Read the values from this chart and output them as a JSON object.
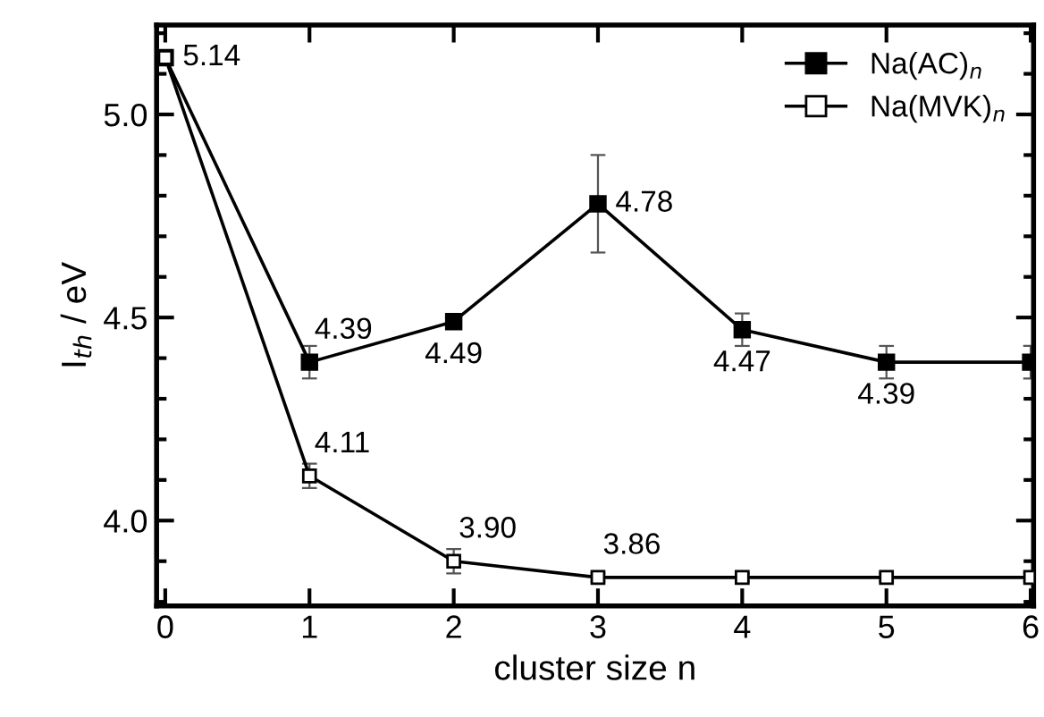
{
  "chart_data": {
    "type": "line",
    "xlabel": "cluster size n",
    "ylabel": "I$_{th}$ / eV",
    "x": [
      0,
      1,
      2,
      3,
      4,
      5,
      6
    ],
    "series": [
      {
        "name": "Na(AC)$_{n}$",
        "color": "#000000",
        "values": [
          5.14,
          4.39,
          4.49,
          4.78,
          4.47,
          4.39,
          4.39
        ],
        "errors": [
          null,
          0.04,
          null,
          0.12,
          0.04,
          0.04,
          0.04
        ],
        "value_labels": [
          "5.14",
          "4.39",
          "4.49",
          "4.78",
          "4.47",
          "4.39",
          null
        ]
      },
      {
        "name": "Na(MVK)$_{n}$",
        "color": "#000000",
        "values": [
          5.14,
          4.11,
          3.9,
          3.86,
          3.86,
          3.86,
          3.86
        ],
        "errors": [
          null,
          0.03,
          0.03,
          0.01,
          0.01,
          0.01,
          0.01
        ],
        "value_labels": [
          null,
          "4.11",
          "3.90",
          "3.86",
          null,
          null,
          null
        ]
      }
    ],
    "xlim": [
      -0.06,
      6.02
    ],
    "ylim": [
      3.79,
      5.22
    ],
    "xticks": [
      0,
      1,
      2,
      3,
      4,
      5,
      6
    ],
    "yticks": [
      {
        "value": 4.0,
        "label": "4.0"
      },
      4.5,
      {
        "value": 5.0,
        "label": "5.0"
      }
    ],
    "marker": "square",
    "line_style": "solid",
    "legend": "top right",
    "grid": false
  }
}
